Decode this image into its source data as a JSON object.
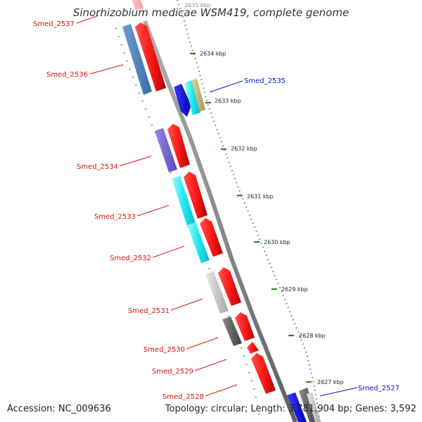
{
  "title": "Sinorhizobium medicae WSM419, complete genome",
  "accession_text": "Accession: NC_009636",
  "summary_text": "Topology: circular; Length: 3,781,904 bp; Genes: 3,592",
  "colors": {
    "backbone": "#8c8c8c",
    "tick": "#2a8a2a",
    "forward_cds": "#ff1010",
    "label_forward": "#dd1111",
    "label_reverse": "#1111cc"
  },
  "ruler": {
    "unit": "kbp",
    "ticks": [
      {
        "kbp": 2635,
        "label": "2635 kbp"
      },
      {
        "kbp": 2634,
        "label": "2634 kbp"
      },
      {
        "kbp": 2633,
        "label": "2633 kbp"
      },
      {
        "kbp": 2632,
        "label": "2632 kbp"
      },
      {
        "kbp": 2631,
        "label": "2631 kbp"
      },
      {
        "kbp": 2630,
        "label": "2630 kbp"
      },
      {
        "kbp": 2629,
        "label": "2629 kbp"
      },
      {
        "kbp": 2628,
        "label": "2628 kbp"
      },
      {
        "kbp": 2627,
        "label": "2627 kbp"
      }
    ]
  },
  "gene_labels": [
    {
      "name": "Smed_2537",
      "strand": "forward"
    },
    {
      "name": "Smed_2536",
      "strand": "forward"
    },
    {
      "name": "Smed_2535",
      "strand": "reverse"
    },
    {
      "name": "Smed_2534",
      "strand": "forward"
    },
    {
      "name": "Smed_2533",
      "strand": "forward"
    },
    {
      "name": "Smed_2532",
      "strand": "forward"
    },
    {
      "name": "Smed_2531",
      "strand": "forward"
    },
    {
      "name": "Smed_2530",
      "strand": "forward"
    },
    {
      "name": "Smed_2529",
      "strand": "forward"
    },
    {
      "name": "Smed_2528",
      "strand": "forward"
    },
    {
      "name": "Smed_2527",
      "strand": "reverse"
    }
  ]
}
